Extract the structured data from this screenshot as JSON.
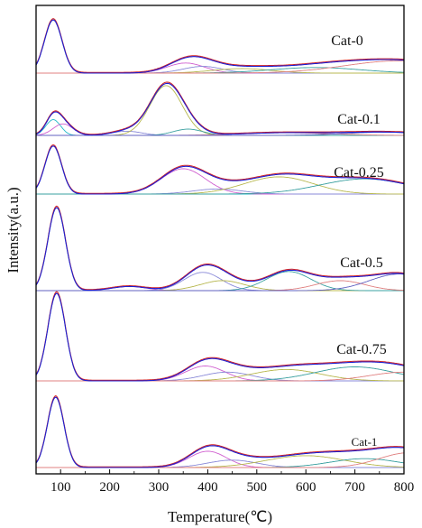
{
  "chart_data": {
    "type": "line",
    "title": "",
    "xlabel": "Temperature(℃)",
    "ylabel": "Intensity(a.u.)",
    "xlim": [
      50,
      800
    ],
    "xticks": [
      "100",
      "200",
      "300",
      "400",
      "500",
      "600",
      "700",
      "800"
    ],
    "grid": false,
    "colors": {
      "total": "#1f1fd0",
      "fit_sum": "#d42020",
      "baseline": "#9aa09a",
      "components": [
        "#22b8c8",
        "#d060d0",
        "#8a8ad8",
        "#b8b850",
        "#3aa0a0",
        "#e08080",
        "#6060c0",
        "#c0c060"
      ]
    },
    "panels": [
      {
        "name": "Cat-0",
        "label_size": 16,
        "components": [
          {
            "center": 85,
            "width": 18,
            "height": 0.95
          },
          {
            "center": 355,
            "width": 38,
            "height": 0.18
          },
          {
            "center": 390,
            "width": 40,
            "height": 0.12
          },
          {
            "center": 470,
            "width": 60,
            "height": 0.08
          },
          {
            "center": 620,
            "width": 90,
            "height": 0.1
          },
          {
            "center": 790,
            "width": 110,
            "height": 0.22
          }
        ]
      },
      {
        "name": "Cat-0.1",
        "label_size": 16,
        "components": [
          {
            "center": 85,
            "width": 15,
            "height": 0.3
          },
          {
            "center": 105,
            "width": 20,
            "height": 0.22
          },
          {
            "center": 235,
            "width": 30,
            "height": 0.08
          },
          {
            "center": 315,
            "width": 33,
            "height": 0.95
          },
          {
            "center": 360,
            "width": 30,
            "height": 0.12
          },
          {
            "center": 560,
            "width": 90,
            "height": 0.05
          },
          {
            "center": 760,
            "width": 80,
            "height": 0.06
          }
        ]
      },
      {
        "name": "Cat-0.25",
        "label_size": 16,
        "components": [
          {
            "center": 85,
            "width": 17,
            "height": 0.95
          },
          {
            "center": 350,
            "width": 45,
            "height": 0.5
          },
          {
            "center": 420,
            "width": 50,
            "height": 0.1
          },
          {
            "center": 545,
            "width": 70,
            "height": 0.34
          },
          {
            "center": 720,
            "width": 90,
            "height": 0.3
          }
        ]
      },
      {
        "name": "Cat-0.5",
        "label_size": 16,
        "components": [
          {
            "center": 92,
            "width": 18,
            "height": 1.0
          },
          {
            "center": 240,
            "width": 35,
            "height": 0.05
          },
          {
            "center": 390,
            "width": 38,
            "height": 0.22
          },
          {
            "center": 430,
            "width": 45,
            "height": 0.12
          },
          {
            "center": 565,
            "width": 45,
            "height": 0.23
          },
          {
            "center": 670,
            "width": 50,
            "height": 0.12
          },
          {
            "center": 790,
            "width": 60,
            "height": 0.2
          }
        ]
      },
      {
        "name": "Cat-0.75",
        "label_size": 16,
        "components": [
          {
            "center": 92,
            "width": 18,
            "height": 1.0
          },
          {
            "center": 395,
            "width": 40,
            "height": 0.17
          },
          {
            "center": 440,
            "width": 50,
            "height": 0.1
          },
          {
            "center": 560,
            "width": 70,
            "height": 0.13
          },
          {
            "center": 700,
            "width": 80,
            "height": 0.16
          },
          {
            "center": 800,
            "width": 70,
            "height": 0.1
          }
        ]
      },
      {
        "name": "Cat-1",
        "label_size": 13,
        "components": [
          {
            "center": 90,
            "width": 17,
            "height": 0.95
          },
          {
            "center": 400,
            "width": 38,
            "height": 0.22
          },
          {
            "center": 450,
            "width": 50,
            "height": 0.1
          },
          {
            "center": 600,
            "width": 80,
            "height": 0.16
          },
          {
            "center": 720,
            "width": 70,
            "height": 0.12
          },
          {
            "center": 810,
            "width": 60,
            "height": 0.2
          }
        ]
      }
    ]
  }
}
